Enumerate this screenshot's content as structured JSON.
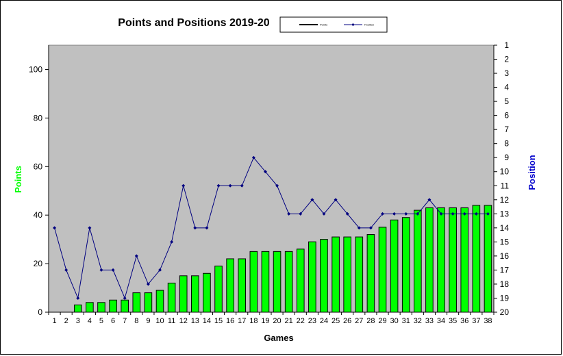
{
  "chart_data": {
    "type": "bar",
    "title": "Points and Positions 2019-20",
    "xlabel": "Games",
    "ylabel": "Points",
    "y2label": "Position",
    "ylim": [
      0,
      110
    ],
    "y_ticks": [
      0,
      20,
      40,
      60,
      80,
      100
    ],
    "y2lim": [
      1,
      20
    ],
    "y2_ticks": [
      1,
      2,
      3,
      4,
      5,
      6,
      7,
      8,
      9,
      10,
      11,
      12,
      13,
      14,
      15,
      16,
      17,
      18,
      19,
      20
    ],
    "y2_inverted": true,
    "grid": false,
    "legend": "top-center",
    "categories": [
      "1",
      "2",
      "3",
      "4",
      "5",
      "6",
      "7",
      "8",
      "9",
      "10",
      "11",
      "12",
      "13",
      "14",
      "15",
      "16",
      "17",
      "18",
      "19",
      "20",
      "21",
      "22",
      "23",
      "24",
      "25",
      "26",
      "27",
      "28",
      "29",
      "30",
      "31",
      "32",
      "33",
      "34",
      "35",
      "36",
      "37",
      "38"
    ],
    "series": [
      {
        "name": "Points",
        "type": "bar",
        "axis": "left",
        "color": "#00ff00",
        "values": [
          0,
          0,
          3,
          4,
          4,
          5,
          5,
          8,
          8,
          9,
          12,
          15,
          15,
          16,
          19,
          22,
          22,
          25,
          25,
          25,
          25,
          26,
          29,
          30,
          31,
          31,
          31,
          32,
          35,
          38,
          39,
          42,
          43,
          43,
          43,
          43,
          44,
          44
        ]
      },
      {
        "name": "Position",
        "type": "line",
        "axis": "right",
        "color": "#000080",
        "values": [
          14,
          17,
          19,
          14,
          17,
          17,
          19,
          16,
          18,
          17,
          15,
          11,
          14,
          14,
          11,
          11,
          11,
          9,
          10,
          11,
          13,
          13,
          12,
          13,
          12,
          13,
          14,
          14,
          13,
          13,
          13,
          13,
          12,
          13,
          13,
          13,
          13,
          13
        ]
      }
    ],
    "colors": {
      "plot_background": "#c0c0c0",
      "points_label": "#00ff00",
      "position_label": "#0000cc",
      "legend_line_1": "#000000",
      "legend_line_2": "#000080"
    }
  },
  "legend": {
    "items": [
      {
        "label": "Points",
        "color": "#000000"
      },
      {
        "label": "Position",
        "color": "#000080"
      }
    ]
  }
}
